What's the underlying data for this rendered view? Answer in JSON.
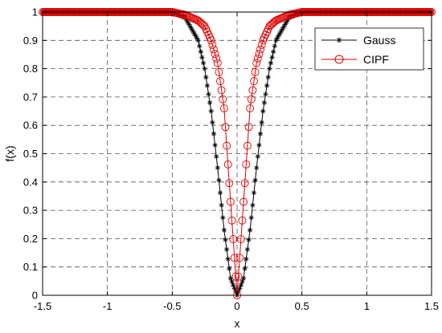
{
  "chart_data": {
    "type": "line",
    "xlabel": "x",
    "ylabel": "f(x)",
    "xlim": [
      -1.5,
      1.5
    ],
    "ylim": [
      0,
      1
    ],
    "xticks": [
      -1.5,
      -1,
      -0.5,
      0,
      0.5,
      1,
      1.5
    ],
    "xtick_labels": [
      "-1.5",
      "-1",
      "-0.5",
      "0",
      "0.5",
      "1",
      "1.5"
    ],
    "yticks": [
      0,
      0.1,
      0.2,
      0.3,
      0.4,
      0.5,
      0.6,
      0.7,
      0.8,
      0.9,
      1
    ],
    "ytick_labels": [
      "0",
      "0.1",
      "0.2",
      "0.3",
      "0.4",
      "0.5",
      "0.6",
      "0.7",
      "0.8",
      "0.9",
      "1"
    ],
    "grid": true,
    "legend_position": "top-right",
    "x": [
      -1.5,
      -0.5,
      -0.4,
      -0.3,
      -0.25,
      -0.2,
      -0.15,
      -0.1,
      -0.05,
      0,
      0.05,
      0.1,
      0.15,
      0.2,
      0.25,
      0.3,
      0.4,
      0.5,
      1.5
    ],
    "series": [
      {
        "name": "Gauss",
        "color": "#000000",
        "marker": "asterisk",
        "values": [
          1,
          0.998,
          0.98,
          0.9,
          0.8,
          0.65,
          0.45,
          0.23,
          0.06,
          0,
          0.06,
          0.23,
          0.45,
          0.65,
          0.8,
          0.9,
          0.98,
          0.998,
          1
        ]
      },
      {
        "name": "CIPF",
        "color": "#e00000",
        "marker": "circle",
        "values": [
          1,
          1,
          0.99,
          0.97,
          0.95,
          0.9,
          0.82,
          0.66,
          0.33,
          0,
          0.33,
          0.66,
          0.82,
          0.9,
          0.95,
          0.97,
          0.99,
          1,
          1
        ]
      }
    ]
  }
}
